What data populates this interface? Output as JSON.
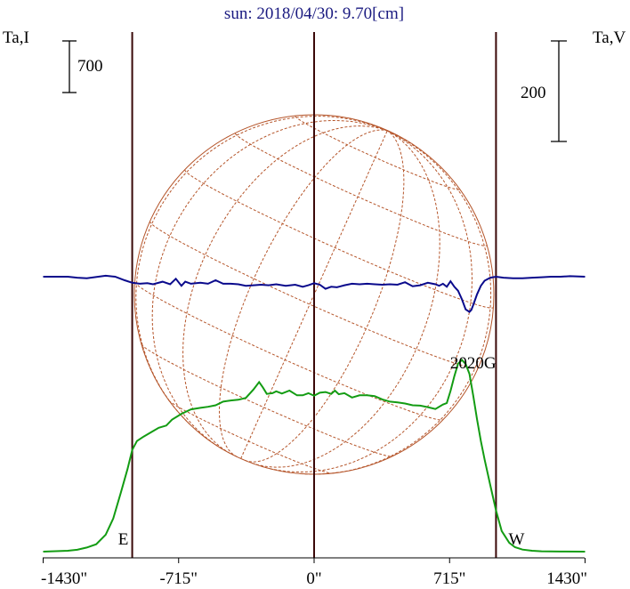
{
  "chart_data": {
    "type": "line",
    "title": "sun: 2018/04/30: 9.70[cm]",
    "left_axis_label": "Ta,I",
    "right_axis_label": "Ta,V",
    "left_scale_bar": "700",
    "right_scale_bar": "200",
    "xlim": [
      -1430,
      1430
    ],
    "x_ticks": [
      -1430,
      -715,
      0,
      715,
      1430
    ],
    "x_tick_labels": [
      "-1430\"",
      "-715\"",
      "0\"",
      "715\"",
      "1430\""
    ],
    "markers": [
      {
        "x": -960,
        "label": "E"
      },
      {
        "x": 0,
        "label": ""
      },
      {
        "x": 960,
        "label": "W"
      }
    ],
    "annotations": [
      {
        "text": "2020G",
        "x": 830
      }
    ],
    "solar_disk_radius_arcsec": 950,
    "grid": false,
    "colors": {
      "I": "#139c13",
      "V": "#0a0a8c",
      "disk": "#b5552a",
      "markers": "#3a0808",
      "title": "#1a1a80"
    },
    "series": [
      {
        "key": "I",
        "x": [
          -1430,
          -1300,
          -1250,
          -1200,
          -1150,
          -1100,
          -1060,
          -1020,
          -985,
          -960,
          -935,
          -900,
          -860,
          -820,
          -780,
          -750,
          -700,
          -650,
          -600,
          -560,
          -520,
          -480,
          -440,
          -400,
          -360,
          -320,
          -290,
          -270,
          -250,
          -220,
          -200,
          -170,
          -130,
          -90,
          -60,
          -30,
          0,
          30,
          60,
          90,
          110,
          130,
          160,
          200,
          240,
          280,
          320,
          360,
          400,
          440,
          480,
          520,
          560,
          600,
          640,
          680,
          700,
          720,
          740,
          760,
          780,
          800,
          820,
          840,
          860,
          880,
          900,
          930,
          960,
          990,
          1030,
          1060,
          1100,
          1150,
          1200,
          1250,
          1300,
          1430
        ],
        "values": [
          0,
          12,
          25,
          55,
          100,
          230,
          450,
          800,
          1120,
          1380,
          1500,
          1560,
          1620,
          1680,
          1710,
          1790,
          1870,
          1930,
          1950,
          1965,
          1985,
          2035,
          2050,
          2060,
          2085,
          2200,
          2300,
          2225,
          2140,
          2150,
          2175,
          2145,
          2185,
          2120,
          2120,
          2150,
          2115,
          2155,
          2165,
          2140,
          2185,
          2135,
          2150,
          2090,
          2120,
          2120,
          2110,
          2065,
          2035,
          2025,
          2010,
          1985,
          1980,
          1960,
          1935,
          1995,
          2015,
          2180,
          2380,
          2550,
          2600,
          2545,
          2410,
          2110,
          1795,
          1500,
          1250,
          900,
          560,
          280,
          120,
          60,
          28,
          12,
          5,
          2,
          1,
          0
        ]
      },
      {
        "key": "V",
        "x": [
          -1430,
          -1300,
          -1250,
          -1200,
          -1100,
          -1050,
          -1000,
          -960,
          -920,
          -880,
          -850,
          -800,
          -760,
          -730,
          -700,
          -680,
          -650,
          -600,
          -560,
          -520,
          -480,
          -440,
          -400,
          -360,
          -320,
          -280,
          -240,
          -200,
          -150,
          -100,
          -60,
          -30,
          0,
          30,
          60,
          90,
          120,
          160,
          200,
          240,
          280,
          320,
          360,
          400,
          440,
          480,
          520,
          560,
          600,
          640,
          660,
          680,
          700,
          720,
          740,
          760,
          780,
          800,
          820,
          830,
          840,
          860,
          880,
          900,
          930,
          960,
          1000,
          1050,
          1100,
          1150,
          1200,
          1250,
          1300,
          1350,
          1430
        ],
        "values": [
          0,
          0,
          -2,
          -3,
          2,
          0,
          -7,
          -12,
          -14,
          -13,
          -15,
          -10,
          -15,
          -4,
          -18,
          -10,
          -14,
          -12,
          -14,
          -7,
          -14,
          -14,
          -15,
          -18,
          -17,
          -16,
          -17,
          -15,
          -18,
          -16,
          -20,
          -17,
          -13,
          -16,
          -24,
          -20,
          -21,
          -17,
          -14,
          -15,
          -14,
          -15,
          -16,
          -15,
          -16,
          -11,
          -19,
          -17,
          -12,
          -15,
          -18,
          -14,
          -20,
          -9,
          -20,
          -28,
          -45,
          -65,
          -70,
          -66,
          -56,
          -35,
          -18,
          -8,
          -2,
          0,
          -2,
          -3,
          -3,
          -2,
          -1,
          0,
          0,
          1,
          0
        ]
      }
    ]
  }
}
